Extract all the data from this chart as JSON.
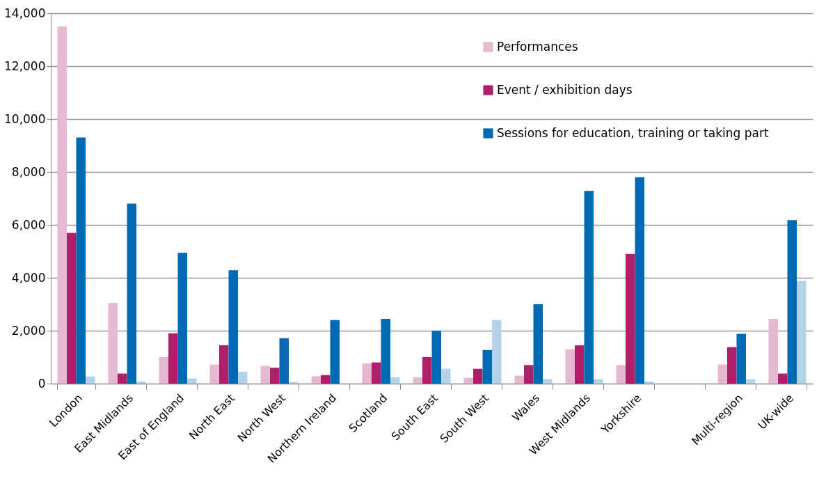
{
  "chart_data": {
    "type": "bar",
    "categories": [
      "London",
      "East Midlands",
      "East of England",
      "North East",
      "North West",
      "Northern Ireland",
      "Scotland",
      "South East",
      "South West",
      "Wales",
      "West Midlands",
      "Yorkshire",
      null,
      "Multi-region",
      "UK-wide"
    ],
    "series": [
      {
        "name": "Performances",
        "color": "#e6b9d1",
        "values": [
          13500,
          3050,
          1000,
          720,
          670,
          280,
          760,
          240,
          220,
          300,
          1300,
          700,
          null,
          720,
          2450
        ]
      },
      {
        "name": "Event / exhibition days",
        "color": "#ad1f69",
        "values": [
          5700,
          380,
          1900,
          1450,
          600,
          320,
          800,
          1000,
          560,
          700,
          1450,
          4900,
          null,
          1380,
          380
        ]
      },
      {
        "name": "Sessions for education, training or taking part",
        "color": "#0069b4",
        "values": [
          9300,
          6800,
          4950,
          4280,
          1720,
          2400,
          2450,
          2000,
          1270,
          3000,
          7280,
          7800,
          null,
          1880,
          6180
        ]
      },
      {
        "color": "#b4d3e8",
        "values": [
          270,
          80,
          200,
          450,
          60,
          0,
          240,
          560,
          2400,
          170,
          170,
          80,
          null,
          170,
          3880
        ]
      }
    ],
    "ylim": [
      0,
      14000
    ],
    "yticks": [
      0,
      {
        "value": 2000,
        "label": "2,000"
      },
      {
        "value": 4000,
        "label": "4,000"
      },
      {
        "value": 6000,
        "label": "6,000"
      },
      {
        "value": 8000,
        "label": "8,000"
      },
      {
        "value": 10000,
        "label": "10,000"
      },
      {
        "value": 12000,
        "label": "12,000"
      },
      {
        "value": 14000,
        "label": "14,000"
      }
    ],
    "grid": "y",
    "legend": "top right"
  }
}
